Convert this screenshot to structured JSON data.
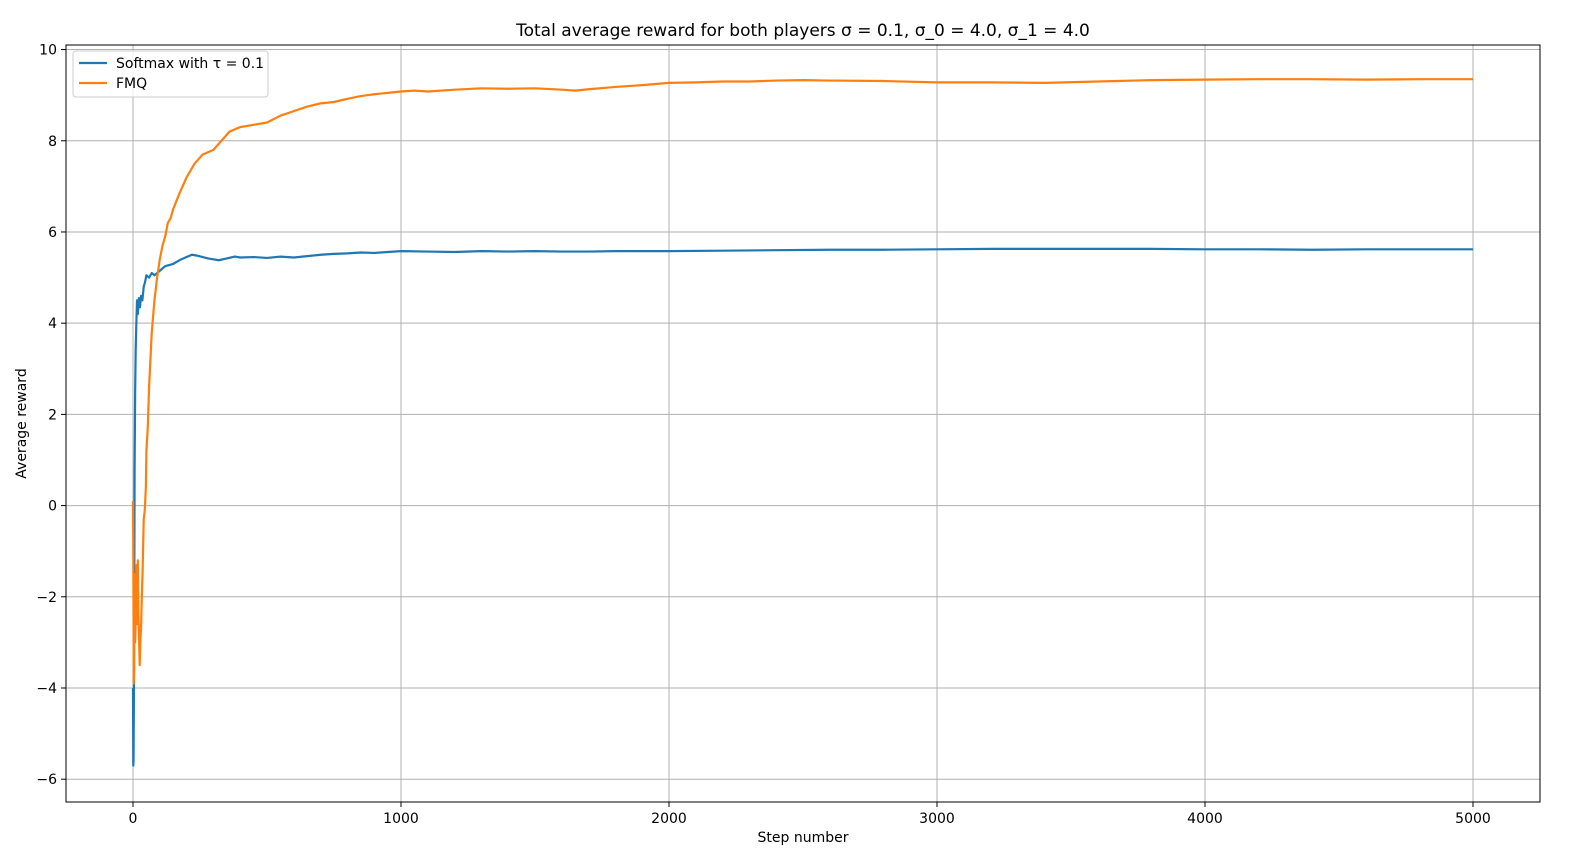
{
  "chart_data": {
    "type": "line",
    "title": "Total average reward for both players σ = 0.1, σ_0 = 4.0, σ_1 = 4.0",
    "xlabel": "Step number",
    "ylabel": "Average reward",
    "xlim": [
      -250,
      5250
    ],
    "ylim": [
      -6.5,
      10.1
    ],
    "xticks": [
      0,
      1000,
      2000,
      3000,
      4000,
      5000
    ],
    "yticks": [
      -6,
      -4,
      -2,
      0,
      2,
      4,
      6,
      8,
      10
    ],
    "grid": true,
    "legend_position": "top-left",
    "series": [
      {
        "name": "Softmax with τ = 0.1",
        "color": "#1f77b4",
        "x": [
          0,
          1,
          2,
          4,
          6,
          8,
          10,
          12,
          15,
          18,
          22,
          26,
          30,
          35,
          40,
          45,
          50,
          60,
          70,
          80,
          100,
          120,
          150,
          180,
          200,
          220,
          240,
          260,
          280,
          300,
          320,
          350,
          380,
          400,
          450,
          500,
          550,
          600,
          650,
          700,
          750,
          800,
          850,
          900,
          950,
          1000,
          1100,
          1200,
          1300,
          1400,
          1500,
          1600,
          1700,
          1800,
          1900,
          2000,
          2200,
          2400,
          2600,
          2800,
          3000,
          3200,
          3400,
          3600,
          3800,
          4000,
          4200,
          4400,
          4600,
          4800,
          5000
        ],
        "y": [
          -4.0,
          -5.7,
          -5.6,
          -3.5,
          0.8,
          2.5,
          3.4,
          3.9,
          4.5,
          4.2,
          4.55,
          4.35,
          4.6,
          4.5,
          4.8,
          4.9,
          5.05,
          5.0,
          5.1,
          5.05,
          5.15,
          5.25,
          5.3,
          5.4,
          5.45,
          5.5,
          5.48,
          5.45,
          5.42,
          5.4,
          5.38,
          5.42,
          5.46,
          5.44,
          5.45,
          5.43,
          5.46,
          5.44,
          5.47,
          5.5,
          5.52,
          5.53,
          5.55,
          5.54,
          5.56,
          5.58,
          5.57,
          5.56,
          5.58,
          5.57,
          5.58,
          5.57,
          5.57,
          5.58,
          5.58,
          5.58,
          5.59,
          5.6,
          5.61,
          5.61,
          5.62,
          5.63,
          5.63,
          5.63,
          5.63,
          5.62,
          5.62,
          5.61,
          5.62,
          5.62,
          5.62
        ]
      },
      {
        "name": "FMQ",
        "color": "#ff7f0e",
        "x": [
          0,
          1,
          2,
          3,
          4,
          5,
          6,
          8,
          10,
          12,
          14,
          16,
          18,
          20,
          22,
          25,
          28,
          30,
          33,
          36,
          40,
          44,
          48,
          50,
          55,
          60,
          65,
          70,
          80,
          90,
          100,
          110,
          120,
          130,
          140,
          150,
          170,
          200,
          230,
          260,
          300,
          330,
          360,
          400,
          450,
          500,
          550,
          600,
          650,
          700,
          750,
          800,
          850,
          900,
          950,
          1000,
          1050,
          1100,
          1200,
          1300,
          1400,
          1500,
          1600,
          1650,
          1700,
          1800,
          1900,
          2000,
          2100,
          2200,
          2300,
          2400,
          2500,
          2600,
          2800,
          3000,
          3200,
          3400,
          3600,
          3800,
          4000,
          4200,
          4400,
          4600,
          4800,
          5000
        ],
        "y": [
          0.1,
          -1.0,
          -2.4,
          -3.9,
          -3.5,
          -1.5,
          -1.8,
          -3.0,
          -2.5,
          -2.0,
          -1.3,
          -2.6,
          -1.2,
          -2.4,
          -2.8,
          -3.5,
          -2.9,
          -2.7,
          -2.0,
          -1.4,
          -0.3,
          -0.1,
          0.4,
          1.2,
          1.7,
          2.6,
          3.2,
          3.8,
          4.5,
          5.0,
          5.4,
          5.7,
          5.9,
          6.2,
          6.3,
          6.5,
          6.8,
          7.2,
          7.5,
          7.7,
          7.8,
          8.0,
          8.2,
          8.3,
          8.35,
          8.4,
          8.55,
          8.65,
          8.75,
          8.82,
          8.85,
          8.92,
          8.98,
          9.02,
          9.05,
          9.08,
          9.1,
          9.08,
          9.12,
          9.15,
          9.14,
          9.15,
          9.12,
          9.1,
          9.13,
          9.18,
          9.22,
          9.27,
          9.28,
          9.3,
          9.3,
          9.32,
          9.33,
          9.32,
          9.31,
          9.28,
          9.28,
          9.27,
          9.3,
          9.33,
          9.34,
          9.35,
          9.35,
          9.34,
          9.35,
          9.35
        ]
      }
    ]
  }
}
